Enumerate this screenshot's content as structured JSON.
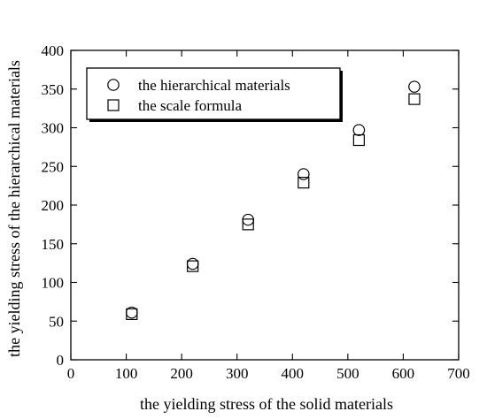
{
  "chart_data": {
    "type": "scatter",
    "xlabel": "the yielding stress of the solid materials",
    "ylabel": "the yielding stress of the hierarchical materials",
    "xlim": [
      0,
      700
    ],
    "ylim": [
      0,
      400
    ],
    "xticks": [
      0,
      100,
      200,
      300,
      400,
      500,
      600,
      700
    ],
    "yticks": [
      0,
      50,
      100,
      150,
      200,
      250,
      300,
      350,
      400
    ],
    "grid": false,
    "legend_position": "top-left",
    "series": [
      {
        "name": "the hierarchical materials",
        "marker": "circle",
        "x": [
          110,
          220,
          320,
          420,
          520,
          620
        ],
        "y": [
          61,
          124,
          181,
          240,
          297,
          353
        ]
      },
      {
        "name": "the scale formula",
        "marker": "square",
        "x": [
          110,
          220,
          320,
          420,
          520,
          620
        ],
        "y": [
          59,
          121,
          175,
          229,
          284,
          337
        ]
      }
    ]
  }
}
